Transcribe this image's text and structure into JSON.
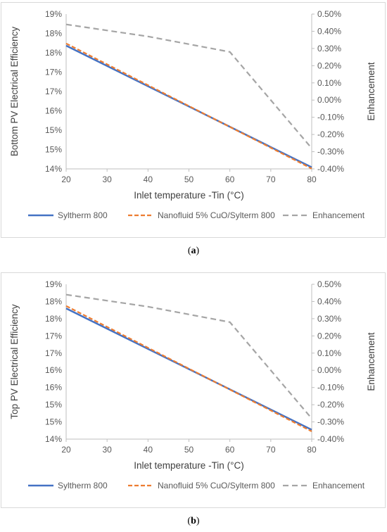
{
  "chart_data": [
    {
      "type": "line",
      "panel_label": "a",
      "xlabel": "Inlet temperature -Tin (°C)",
      "ylabel": "Bottom PV Electrical Efficiency",
      "y2label": "Enhancement",
      "xlim": [
        20,
        80
      ],
      "ylim": [
        14,
        19
      ],
      "y2lim": [
        -0.4,
        0.5
      ],
      "x_ticks": [
        "20",
        "30",
        "40",
        "50",
        "60",
        "70",
        "80"
      ],
      "y_ticks": [
        "14%",
        "15%",
        "15%",
        "16%",
        "17%",
        "17%",
        "18%",
        "18%",
        "19%"
      ],
      "y2_ticks": [
        "-0.40%",
        "-0.30%",
        "-0.20%",
        "-0.10%",
        "0.00%",
        "0.10%",
        "0.20%",
        "0.30%",
        "0.40%",
        "0.50%"
      ],
      "legend_position": "bottom",
      "series": [
        {
          "name": "Syltherm 800",
          "axis": "left",
          "x": [
            20,
            80
          ],
          "y": [
            17.98,
            14.05
          ],
          "color": "#4472c4",
          "style": "solid"
        },
        {
          "name": "Nanofluid 5% CuO/Sylterm 800",
          "axis": "left",
          "x": [
            20,
            80
          ],
          "y": [
            18.05,
            14.01
          ],
          "color": "#ed7d31",
          "style": "dashed"
        },
        {
          "name": "Enhancement",
          "axis": "right",
          "x": [
            20,
            40,
            60,
            80
          ],
          "y": [
            0.44,
            0.37,
            0.28,
            -0.28
          ],
          "color": "#a5a5a5",
          "style": "dashed"
        }
      ]
    },
    {
      "type": "line",
      "panel_label": "b",
      "xlabel": "Inlet temperature -Tin (°C)",
      "ylabel": "Top PV Electrical Efficiency",
      "y2label": "Enhancement",
      "xlim": [
        20,
        80
      ],
      "ylim": [
        14,
        19
      ],
      "y2lim": [
        -0.4,
        0.5
      ],
      "x_ticks": [
        "20",
        "30",
        "40",
        "50",
        "60",
        "70",
        "80"
      ],
      "y_ticks": [
        "14%",
        "15%",
        "15%",
        "16%",
        "16%",
        "17%",
        "17%",
        "18%",
        "18%",
        "19%"
      ],
      "y2_ticks": [
        "-0.40%",
        "-0.30%",
        "-0.20%",
        "-0.10%",
        "0.00%",
        "0.10%",
        "0.20%",
        "0.30%",
        "0.40%",
        "0.50%"
      ],
      "legend_position": "bottom",
      "series": [
        {
          "name": "Syltherm 800",
          "axis": "left",
          "x": [
            20,
            80
          ],
          "y": [
            18.22,
            14.3
          ],
          "color": "#4472c4",
          "style": "solid"
        },
        {
          "name": "Nanofluid 5% CuO/Sylterm 800",
          "axis": "left",
          "x": [
            20,
            80
          ],
          "y": [
            18.3,
            14.25
          ],
          "color": "#ed7d31",
          "style": "dashed"
        },
        {
          "name": "Enhancement",
          "axis": "right",
          "x": [
            20,
            40,
            60,
            80
          ],
          "y": [
            0.44,
            0.37,
            0.28,
            -0.28
          ],
          "color": "#a5a5a5",
          "style": "dashed"
        }
      ]
    }
  ]
}
